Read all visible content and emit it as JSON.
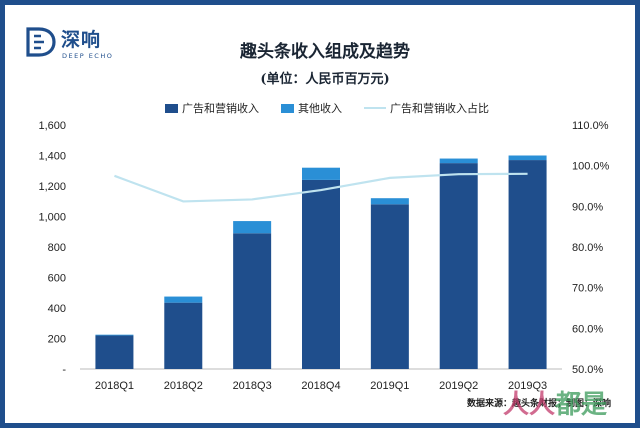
{
  "logo": {
    "name_cn": "深响",
    "name_en": "DEEP ECHO"
  },
  "header": {
    "title": "趣头条收入组成及趋势",
    "subtitle": "(单位：人民币百万元)"
  },
  "source_note": "数据来源：趣头条财报；制图：深响",
  "watermark": {
    "part_a": "人人",
    "part_b": "都是"
  },
  "colors": {
    "ads": "#1f4e8c",
    "other": "#2a8fd6",
    "share": "#bfe3ef"
  },
  "chart_data": {
    "type": "bar",
    "stacked": true,
    "categories": [
      "2018Q1",
      "2018Q2",
      "2018Q3",
      "2018Q4",
      "2019Q1",
      "2019Q2",
      "2019Q3"
    ],
    "series": [
      {
        "name": "广告和营销收入",
        "axis": "left",
        "values": [
          220,
          435,
          890,
          1240,
          1080,
          1350,
          1370
        ]
      },
      {
        "name": "其他收入",
        "axis": "left",
        "values": [
          5,
          40,
          80,
          80,
          40,
          30,
          30
        ]
      },
      {
        "name": "广告和营销收入占比",
        "type": "line",
        "axis": "right",
        "values": [
          97.5,
          91.2,
          91.7,
          94.0,
          97.0,
          97.9,
          98.0
        ]
      }
    ],
    "ylim": [
      0,
      1600
    ],
    "y_ticks": [
      "-",
      "200",
      "400",
      "600",
      "800",
      "1,000",
      "1,200",
      "1,400",
      "1,600"
    ],
    "y2lim": [
      50,
      110
    ],
    "y2_ticks": [
      "50.0%",
      "60.0%",
      "70.0%",
      "80.0%",
      "90.0%",
      "100.0%",
      "110.0%"
    ],
    "legend": "top",
    "grid": false
  }
}
